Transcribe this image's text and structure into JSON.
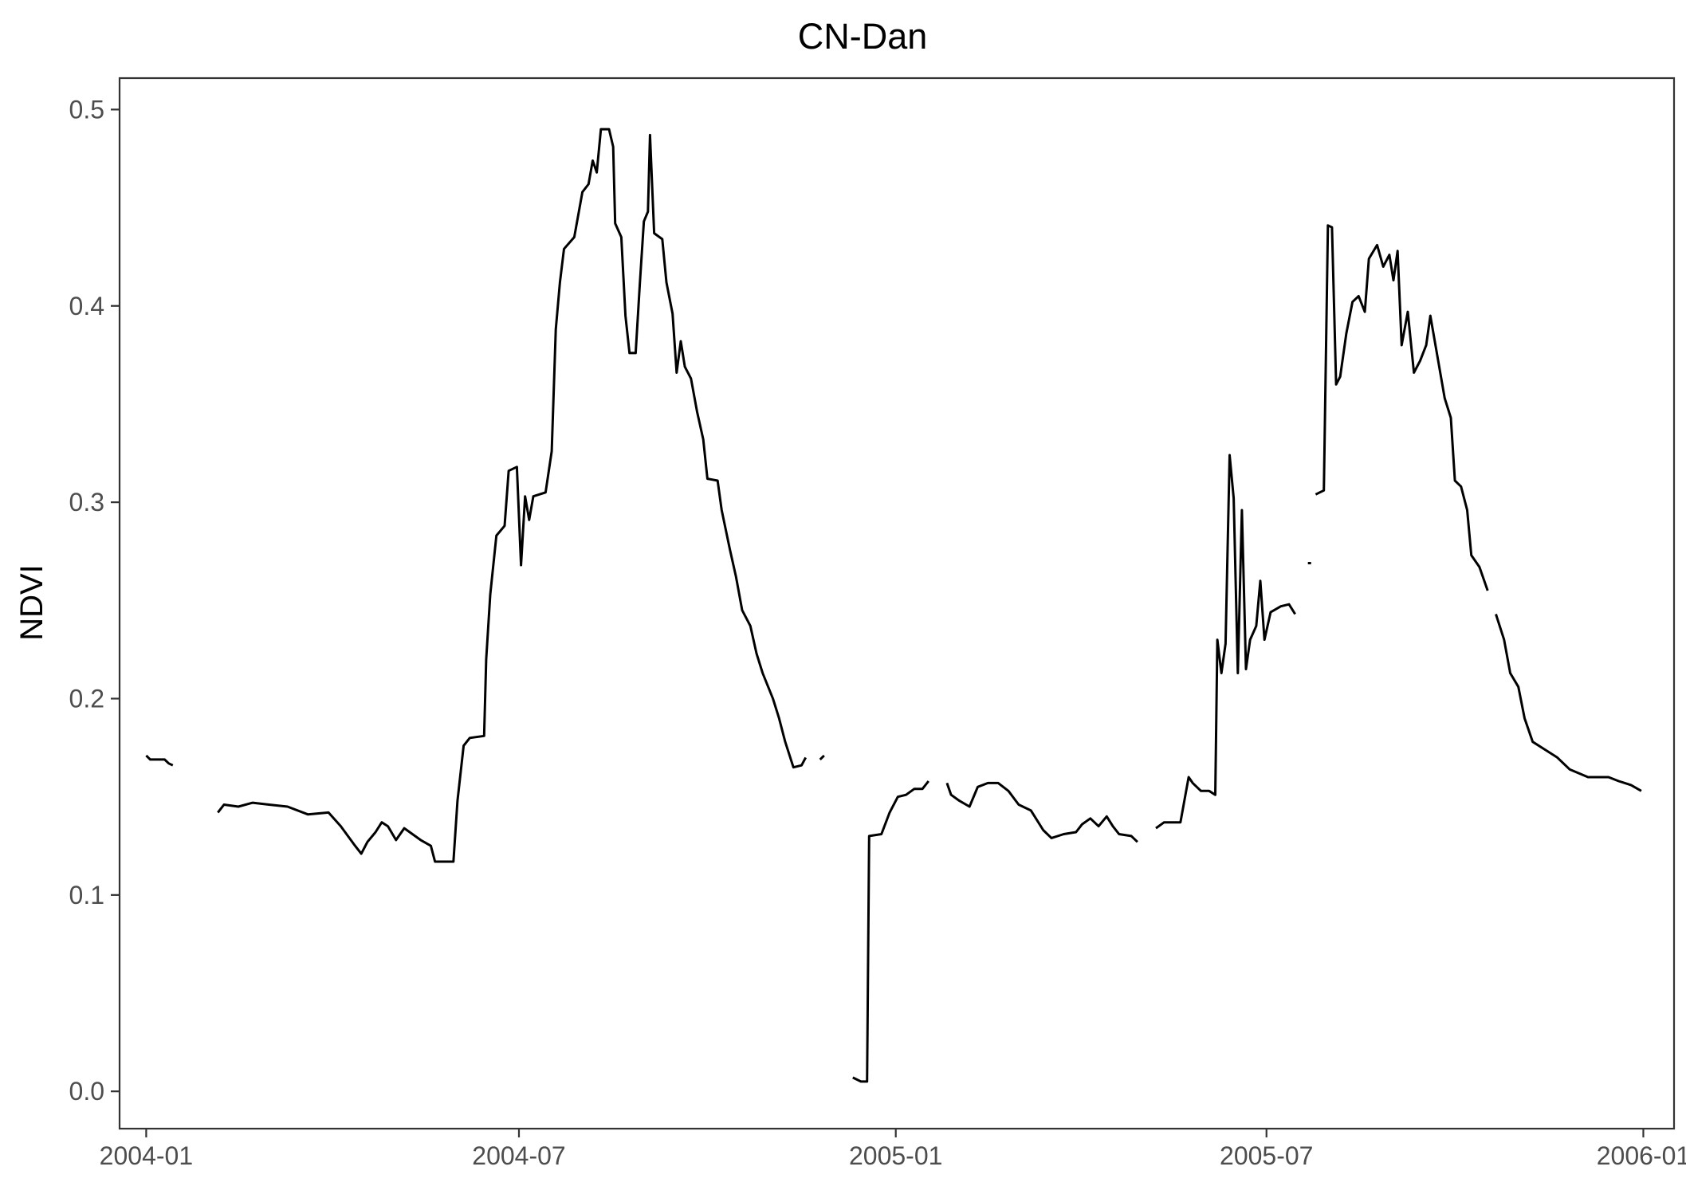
{
  "chart_data": {
    "type": "line",
    "title": "CN-Dan",
    "xlabel": "",
    "ylabel": "NDVI",
    "x_ticks": [
      "2004-01",
      "2004-07",
      "2005-01",
      "2005-07",
      "2006-01"
    ],
    "y_ticks": [
      "0.0",
      "0.1",
      "0.2",
      "0.3",
      "0.4",
      "0.5"
    ],
    "xlim": [
      "2003-12-19",
      "2006-01-16"
    ],
    "ylim": [
      -0.019,
      0.516
    ],
    "grid": false,
    "legend": "none",
    "colors": {
      "line": "#000000",
      "frame": "#333333",
      "tick_text": "#4d4d4d",
      "background": "#ffffff"
    },
    "series": [
      {
        "segments": [
          [
            [
              "2004-01-01",
              0.171
            ],
            [
              "2004-01-03",
              0.169
            ],
            [
              "2004-01-10",
              0.169
            ],
            [
              "2004-01-12",
              0.167
            ],
            [
              "2004-01-14",
              0.166
            ]
          ],
          [
            [
              "2004-02-05",
              0.142
            ],
            [
              "2004-02-08",
              0.146
            ],
            [
              "2004-02-15",
              0.145
            ],
            [
              "2004-02-22",
              0.147
            ],
            [
              "2004-03-01",
              0.146
            ],
            [
              "2004-03-10",
              0.145
            ],
            [
              "2004-03-20",
              0.141
            ],
            [
              "2004-03-30",
              0.142
            ],
            [
              "2004-04-05",
              0.135
            ],
            [
              "2004-04-12",
              0.125
            ],
            [
              "2004-04-15",
              0.121
            ],
            [
              "2004-04-18",
              0.127
            ],
            [
              "2004-04-22",
              0.132
            ],
            [
              "2004-04-25",
              0.137
            ],
            [
              "2004-04-28",
              0.135
            ],
            [
              "2004-05-02",
              0.128
            ],
            [
              "2004-05-06",
              0.134
            ],
            [
              "2004-05-10",
              0.131
            ],
            [
              "2004-05-14",
              0.128
            ],
            [
              "2004-05-19",
              0.125
            ],
            [
              "2004-05-21",
              0.117
            ],
            [
              "2004-05-25",
              0.117
            ],
            [
              "2004-05-30",
              0.117
            ],
            [
              "2004-06-01",
              0.148
            ],
            [
              "2004-06-04",
              0.176
            ],
            [
              "2004-06-07",
              0.18
            ],
            [
              "2004-06-14",
              0.181
            ],
            [
              "2004-06-15",
              0.22
            ],
            [
              "2004-06-17",
              0.253
            ],
            [
              "2004-06-20",
              0.283
            ],
            [
              "2004-06-24",
              0.288
            ],
            [
              "2004-06-26",
              0.316
            ],
            [
              "2004-06-30",
              0.318
            ],
            [
              "2004-07-02",
              0.268
            ],
            [
              "2004-07-04",
              0.303
            ],
            [
              "2004-07-06",
              0.291
            ],
            [
              "2004-07-08",
              0.303
            ],
            [
              "2004-07-14",
              0.305
            ],
            [
              "2004-07-17",
              0.326
            ],
            [
              "2004-07-19",
              0.388
            ],
            [
              "2004-07-21",
              0.412
            ],
            [
              "2004-07-23",
              0.429
            ],
            [
              "2004-07-28",
              0.435
            ],
            [
              "2004-08-01",
              0.458
            ],
            [
              "2004-08-04",
              0.462
            ],
            [
              "2004-08-06",
              0.474
            ],
            [
              "2004-08-08",
              0.468
            ],
            [
              "2004-08-10",
              0.49
            ],
            [
              "2004-08-14",
              0.49
            ],
            [
              "2004-08-16",
              0.481
            ],
            [
              "2004-08-17",
              0.442
            ],
            [
              "2004-08-20",
              0.435
            ],
            [
              "2004-08-22",
              0.395
            ],
            [
              "2004-08-24",
              0.376
            ],
            [
              "2004-08-27",
              0.376
            ],
            [
              "2004-08-29",
              0.411
            ],
            [
              "2004-08-31",
              0.443
            ],
            [
              "2004-09-02",
              0.448
            ],
            [
              "2004-09-03",
              0.487
            ],
            [
              "2004-09-05",
              0.437
            ],
            [
              "2004-09-09",
              0.434
            ],
            [
              "2004-09-11",
              0.412
            ],
            [
              "2004-09-14",
              0.396
            ],
            [
              "2004-09-16",
              0.366
            ],
            [
              "2004-09-18",
              0.382
            ],
            [
              "2004-09-20",
              0.369
            ],
            [
              "2004-09-23",
              0.363
            ],
            [
              "2004-09-26",
              0.346
            ],
            [
              "2004-09-29",
              0.332
            ],
            [
              "2004-10-01",
              0.312
            ],
            [
              "2004-10-06",
              0.311
            ],
            [
              "2004-10-08",
              0.296
            ],
            [
              "2004-10-12",
              0.276
            ],
            [
              "2004-10-15",
              0.262
            ],
            [
              "2004-10-18",
              0.245
            ],
            [
              "2004-10-22",
              0.237
            ],
            [
              "2004-10-25",
              0.223
            ],
            [
              "2004-10-28",
              0.213
            ],
            [
              "2004-11-02",
              0.2
            ],
            [
              "2004-11-05",
              0.19
            ],
            [
              "2004-11-08",
              0.178
            ],
            [
              "2004-11-12",
              0.165
            ],
            [
              "2004-11-16",
              0.166
            ],
            [
              "2004-11-18",
              0.17
            ]
          ],
          [
            [
              "2004-11-25",
              0.169
            ],
            [
              "2004-11-27",
              0.171
            ]
          ],
          [
            [
              "2004-12-11",
              0.007
            ],
            [
              "2004-12-13",
              0.006
            ],
            [
              "2004-12-15",
              0.005
            ],
            [
              "2004-12-18",
              0.005
            ],
            [
              "2004-12-19",
              0.13
            ],
            [
              "2004-12-25",
              0.131
            ],
            [
              "2004-12-29",
              0.142
            ],
            [
              "2005-01-02",
              0.15
            ],
            [
              "2005-01-06",
              0.151
            ],
            [
              "2005-01-10",
              0.154
            ],
            [
              "2005-01-14",
              0.154
            ],
            [
              "2005-01-17",
              0.158
            ]
          ],
          [
            [
              "2005-01-26",
              0.157
            ],
            [
              "2005-01-28",
              0.151
            ],
            [
              "2005-02-01",
              0.148
            ],
            [
              "2005-02-06",
              0.145
            ],
            [
              "2005-02-10",
              0.155
            ],
            [
              "2005-02-15",
              0.157
            ],
            [
              "2005-02-20",
              0.157
            ],
            [
              "2005-02-25",
              0.153
            ],
            [
              "2005-03-02",
              0.146
            ],
            [
              "2005-03-08",
              0.143
            ],
            [
              "2005-03-14",
              0.133
            ],
            [
              "2005-03-18",
              0.129
            ],
            [
              "2005-03-24",
              0.131
            ],
            [
              "2005-03-30",
              0.132
            ],
            [
              "2005-04-02",
              0.136
            ],
            [
              "2005-04-06",
              0.139
            ],
            [
              "2005-04-10",
              0.135
            ],
            [
              "2005-04-14",
              0.14
            ],
            [
              "2005-04-17",
              0.135
            ],
            [
              "2005-04-20",
              0.131
            ],
            [
              "2005-04-26",
              0.13
            ],
            [
              "2005-04-29",
              0.127
            ]
          ],
          [
            [
              "2005-05-08",
              0.134
            ],
            [
              "2005-05-12",
              0.137
            ],
            [
              "2005-05-20",
              0.137
            ],
            [
              "2005-05-24",
              0.16
            ],
            [
              "2005-05-26",
              0.157
            ],
            [
              "2005-05-30",
              0.153
            ],
            [
              "2005-06-03",
              0.153
            ],
            [
              "2005-06-06",
              0.151
            ],
            [
              "2005-06-07",
              0.23
            ],
            [
              "2005-06-09",
              0.213
            ],
            [
              "2005-06-11",
              0.228
            ],
            [
              "2005-06-13",
              0.324
            ],
            [
              "2005-06-15",
              0.302
            ],
            [
              "2005-06-17",
              0.213
            ],
            [
              "2005-06-19",
              0.296
            ],
            [
              "2005-06-21",
              0.215
            ],
            [
              "2005-06-23",
              0.23
            ],
            [
              "2005-06-26",
              0.237
            ],
            [
              "2005-06-28",
              0.26
            ],
            [
              "2005-06-30",
              0.23
            ],
            [
              "2005-07-03",
              0.244
            ],
            [
              "2005-07-08",
              0.247
            ],
            [
              "2005-07-12",
              0.248
            ],
            [
              "2005-07-15",
              0.243
            ]
          ],
          [
            [
              "2005-07-22",
              0.269
            ]
          ],
          [
            [
              "2005-07-25",
              0.304
            ],
            [
              "2005-07-29",
              0.306
            ],
            [
              "2005-07-31",
              0.441
            ],
            [
              "2005-08-02",
              0.44
            ],
            [
              "2005-08-04",
              0.36
            ],
            [
              "2005-08-06",
              0.364
            ],
            [
              "2005-08-09",
              0.386
            ],
            [
              "2005-08-12",
              0.402
            ],
            [
              "2005-08-15",
              0.405
            ],
            [
              "2005-08-18",
              0.397
            ],
            [
              "2005-08-20",
              0.424
            ],
            [
              "2005-08-24",
              0.431
            ],
            [
              "2005-08-27",
              0.42
            ],
            [
              "2005-08-30",
              0.426
            ],
            [
              "2005-09-01",
              0.413
            ],
            [
              "2005-09-03",
              0.428
            ],
            [
              "2005-09-05",
              0.38
            ],
            [
              "2005-09-08",
              0.397
            ],
            [
              "2005-09-11",
              0.366
            ],
            [
              "2005-09-14",
              0.372
            ],
            [
              "2005-09-17",
              0.38
            ],
            [
              "2005-09-19",
              0.395
            ],
            [
              "2005-09-22",
              0.377
            ],
            [
              "2005-09-26",
              0.353
            ],
            [
              "2005-09-29",
              0.343
            ],
            [
              "2005-10-01",
              0.311
            ],
            [
              "2005-10-04",
              0.308
            ],
            [
              "2005-10-07",
              0.296
            ],
            [
              "2005-10-09",
              0.273
            ],
            [
              "2005-10-13",
              0.267
            ],
            [
              "2005-10-17",
              0.255
            ]
          ],
          [
            [
              "2005-10-21",
              0.243
            ],
            [
              "2005-10-25",
              0.23
            ],
            [
              "2005-10-28",
              0.213
            ],
            [
              "2005-11-01",
              0.206
            ],
            [
              "2005-11-04",
              0.19
            ],
            [
              "2005-11-08",
              0.178
            ],
            [
              "2005-11-14",
              0.174
            ],
            [
              "2005-11-20",
              0.17
            ],
            [
              "2005-11-26",
              0.164
            ],
            [
              "2005-12-05",
              0.16
            ],
            [
              "2005-12-15",
              0.16
            ],
            [
              "2005-12-20",
              0.158
            ],
            [
              "2005-12-26",
              0.156
            ],
            [
              "2005-12-31",
              0.153
            ]
          ]
        ]
      }
    ]
  }
}
